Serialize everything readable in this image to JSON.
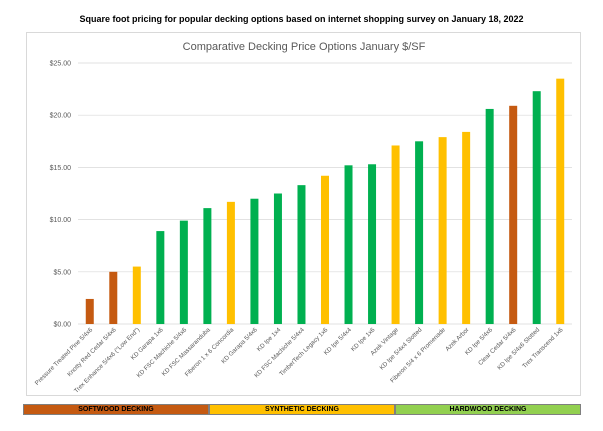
{
  "page_title": "Square foot pricing for popular decking options based on internet shopping survey on January 18, 2022",
  "colors": {
    "softwood": "#c55a11",
    "synthetic": "#ffc000",
    "hardwood": "#00b050",
    "grid": "#d9d9d9",
    "axis_text": "#595959",
    "hardwood_band": "#92d050"
  },
  "chart_data": {
    "type": "bar",
    "title": "Comparative Decking Price Options January $/SF",
    "xlabel": "",
    "ylabel": "",
    "ylim": [
      0,
      25
    ],
    "yticks": [
      "$0.00",
      "$5.00",
      "$10.00",
      "$15.00",
      "$20.00",
      "$25.00"
    ],
    "ytick_values": [
      0,
      5,
      10,
      15,
      20,
      25
    ],
    "grid": true,
    "categories": [
      "Pressure Treated Pine 5/4x6",
      "Knotty Red Cedar 5/4x6",
      "Trex Enhance 5/4x6 (\"Low End\")",
      "KD Garapa 1x6",
      "KD FSC Machiche 5/4x6",
      "KD FSC Massaranduba",
      "Fiberon 1 x 6 Concordia",
      "KD Garapa 5/4x6",
      "KD Ipe 1x4",
      "KD FSC Machiche 5/4x4",
      "TimberTech Legacy 1x6",
      "KD Ipe 5/4x4",
      "KD Ipe 1x6",
      "Azek Vintage",
      "KD Ipe 5/4x4 Slotted",
      "Fiberon 5/4 x 6 Promenade",
      "Azek Arbor",
      "KD Ipe 5/4x6",
      "Clear Cedar 5/4x6",
      "KD Ipe 5/4x6 Slotted",
      "Trex Transcend 1x6"
    ],
    "values": [
      2.4,
      5.0,
      5.5,
      8.9,
      9.9,
      11.1,
      11.7,
      12.0,
      12.5,
      13.3,
      14.2,
      15.2,
      15.3,
      17.1,
      17.5,
      17.9,
      18.4,
      20.6,
      20.9,
      22.3,
      23.5
    ],
    "bar_groups": [
      "softwood",
      "softwood",
      "synthetic",
      "hardwood",
      "hardwood",
      "hardwood",
      "synthetic",
      "hardwood",
      "hardwood",
      "hardwood",
      "synthetic",
      "hardwood",
      "hardwood",
      "synthetic",
      "hardwood",
      "synthetic",
      "synthetic",
      "hardwood",
      "softwood",
      "hardwood",
      "synthetic"
    ]
  },
  "category_bands": [
    {
      "key": "softwood",
      "label": "SOFTWOOD DECKING"
    },
    {
      "key": "synthetic",
      "label": "SYNTHETIC DECKING"
    },
    {
      "key": "hardwood",
      "label": "HARDWOOD DECKING"
    }
  ]
}
